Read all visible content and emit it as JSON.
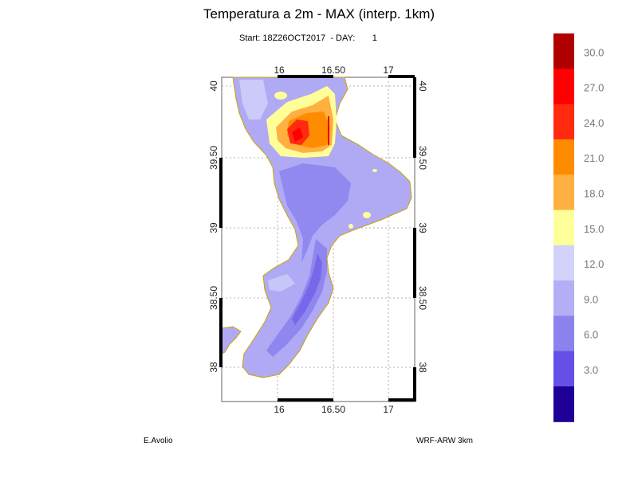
{
  "header": {
    "title": "Temperatura a 2m - MAX (interp. 1km)",
    "subtitle": "Start: 18Z26OCT2017  - DAY:       1"
  },
  "footer": {
    "author": "E.Avolio",
    "model": "WRF-ARW 3km"
  },
  "map": {
    "lon_ticks": [
      "16",
      "16.50",
      "17"
    ],
    "lat_ticks": [
      "40",
      "39.50",
      "39",
      "38.50",
      "38"
    ],
    "land_color_base": "#b0aaf5",
    "coast_color": "#c8a400"
  },
  "colorbar": {
    "labels": [
      "30.0",
      "27.0",
      "24.0",
      "21.0",
      "18.0",
      "15.0",
      "12.0",
      "9.0",
      "6.0",
      "3.0"
    ],
    "colors": [
      "#b00000",
      "#ff0000",
      "#ff2a10",
      "#ff8c00",
      "#ffb040",
      "#ffff99",
      "#d2d2fa",
      "#b4aff5",
      "#8c82ee",
      "#6450e6",
      "#1e0096"
    ]
  }
}
